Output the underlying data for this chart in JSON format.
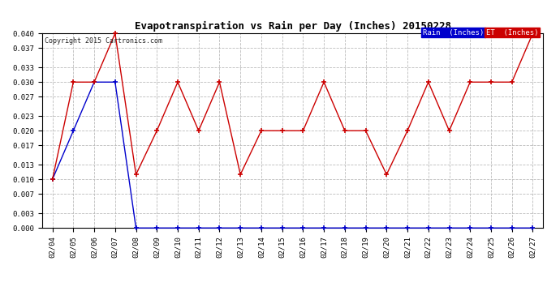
{
  "title": "Evapotranspiration vs Rain per Day (Inches) 20150228",
  "copyright": "Copyright 2015 Cartronics.com",
  "background_color": "#ffffff",
  "plot_bg_color": "#ffffff",
  "grid_color": "#bbbbbb",
  "x_labels": [
    "02/04",
    "02/05",
    "02/06",
    "02/07",
    "02/08",
    "02/09",
    "02/10",
    "02/11",
    "02/12",
    "02/13",
    "02/14",
    "02/15",
    "02/16",
    "02/17",
    "02/18",
    "02/19",
    "02/20",
    "02/21",
    "02/22",
    "02/23",
    "02/24",
    "02/25",
    "02/26",
    "02/27"
  ],
  "rain_values": [
    0.01,
    0.02,
    0.03,
    0.03,
    0.0,
    0.0,
    0.0,
    0.0,
    0.0,
    0.0,
    0.0,
    0.0,
    0.0,
    0.0,
    0.0,
    0.0,
    0.0,
    0.0,
    0.0,
    0.0,
    0.0,
    0.0,
    0.0,
    0.0
  ],
  "et_values": [
    0.01,
    0.03,
    0.03,
    0.04,
    0.011,
    0.02,
    0.03,
    0.02,
    0.03,
    0.011,
    0.02,
    0.02,
    0.02,
    0.03,
    0.02,
    0.02,
    0.011,
    0.02,
    0.03,
    0.02,
    0.03,
    0.03,
    0.03,
    0.04
  ],
  "rain_color": "#0000cc",
  "et_color": "#cc0000",
  "ylim": [
    0.0,
    0.04
  ],
  "yticks": [
    0.0,
    0.003,
    0.007,
    0.01,
    0.013,
    0.017,
    0.02,
    0.023,
    0.027,
    0.03,
    0.033,
    0.037,
    0.04
  ],
  "legend_rain_bg": "#0000cc",
  "legend_et_bg": "#cc0000",
  "legend_rain_label": "Rain  (Inches)",
  "legend_et_label": "ET  (Inches)"
}
